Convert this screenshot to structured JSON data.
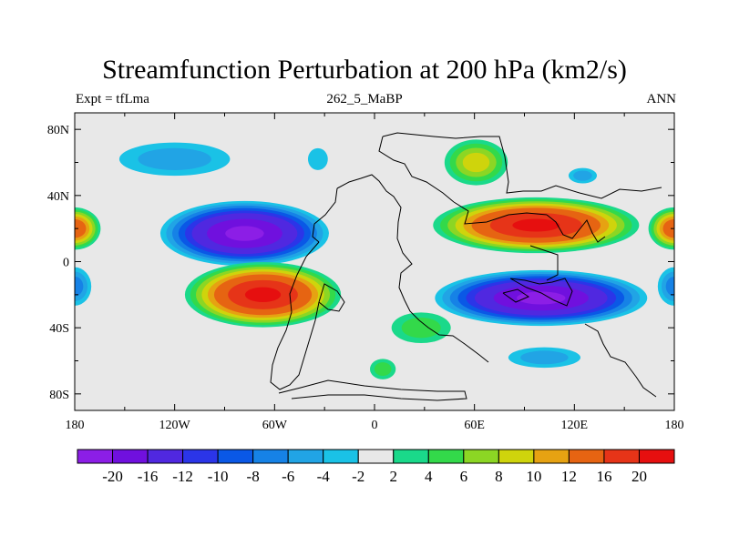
{
  "chart_data": {
    "type": "contour_map",
    "title": "Streamfunction Perturbation at 200 hPa (km2/s)",
    "subtitle_left": "Expt = tfLma",
    "subtitle_center": "262_5_MaBP",
    "subtitle_right": "ANN",
    "x_ticks": [
      "180",
      "120W",
      "60W",
      "0",
      "60E",
      "120E",
      "180"
    ],
    "x_tick_values": [
      -180,
      -120,
      -60,
      0,
      60,
      120,
      180
    ],
    "y_ticks": [
      "80N",
      "40N",
      "0",
      "40S",
      "80S"
    ],
    "y_tick_values": [
      80,
      40,
      0,
      -40,
      -80
    ],
    "xlim": [
      -180,
      180
    ],
    "ylim": [
      -90,
      90
    ],
    "units": "km2/s",
    "colorbar": {
      "labels": [
        "-20",
        "-16",
        "-12",
        "-10",
        "-8",
        "-6",
        "-4",
        "-2",
        "2",
        "4",
        "6",
        "8",
        "10",
        "12",
        "16",
        "20"
      ],
      "colors": [
        "#8c1ee6",
        "#7010de",
        "#5028e0",
        "#2b35e8",
        "#0a58e6",
        "#1682e6",
        "#21a4e5",
        "#1ac2e6",
        "#e8e8e8",
        "#1ad98a",
        "#33d94a",
        "#8cd624",
        "#cfd40c",
        "#e6a212",
        "#e66412",
        "#e63418",
        "#e60f0f"
      ]
    },
    "anomalies": [
      {
        "name": "north-pacific-low",
        "lon": -120,
        "lat": 62,
        "rx": 43,
        "ry": 13,
        "peak": -4
      },
      {
        "name": "north-atlantic-low",
        "lon": -34,
        "lat": 62,
        "rx": 9,
        "ry": 10,
        "peak": -2
      },
      {
        "name": "eurasia-high",
        "lon": 61,
        "lat": 60,
        "rx": 22,
        "ry": 16,
        "peak": 8
      },
      {
        "name": "siberia-low",
        "lon": 125,
        "lat": 52,
        "rx": 11,
        "ry": 6,
        "peak": -4
      },
      {
        "name": "nh-subtropical-low",
        "lon": -78,
        "lat": 17,
        "rx": 54,
        "ry": 21,
        "peak": -20
      },
      {
        "name": "nh-subtropical-high",
        "lon": 97,
        "lat": 22,
        "rx": 66,
        "ry": 18,
        "peak": 20
      },
      {
        "name": "dateline-high",
        "lon": -180,
        "lat": 20,
        "rx": 17,
        "ry": 14,
        "peak": 14
      },
      {
        "name": "sh-subtropical-high",
        "lon": -67,
        "lat": -20,
        "rx": 50,
        "ry": 21,
        "peak": 20
      },
      {
        "name": "sh-subtropical-low",
        "lon": 100,
        "lat": -22,
        "rx": 68,
        "ry": 18,
        "peak": -20
      },
      {
        "name": "dateline-low",
        "lon": -180,
        "lat": -15,
        "rx": 12,
        "ry": 14,
        "peak": -6
      },
      {
        "name": "africa-high",
        "lon": 28,
        "lat": -40,
        "rx": 23,
        "ry": 12,
        "peak": 4
      },
      {
        "name": "sh-extratropical-low",
        "lon": 102,
        "lat": -58,
        "rx": 28,
        "ry": 8,
        "peak": -4
      },
      {
        "name": "antarctic-high",
        "lon": 5,
        "lat": -65,
        "rx": 10,
        "ry": 8,
        "peak": 4
      }
    ]
  }
}
